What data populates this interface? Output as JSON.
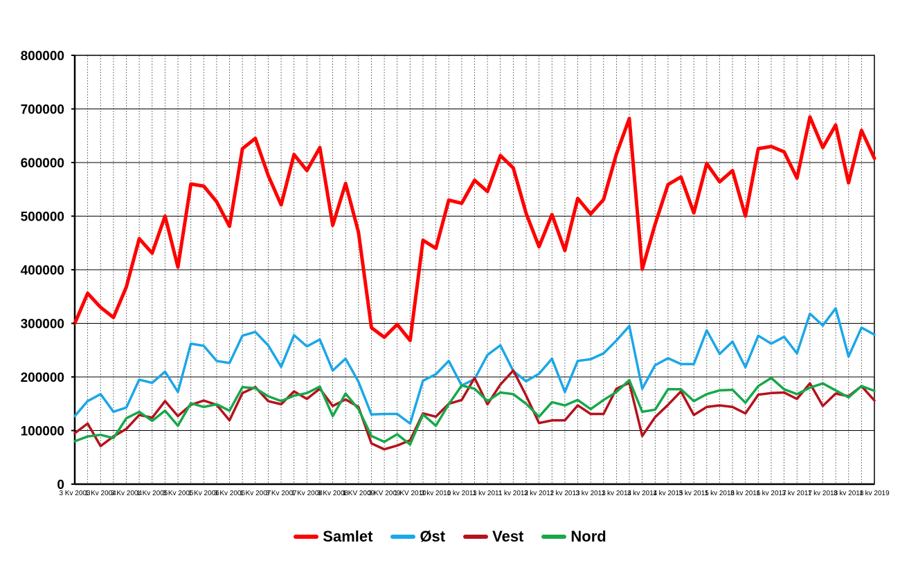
{
  "chart_data": {
    "type": "line",
    "title": "",
    "xlabel": "",
    "ylabel": "",
    "ylim": [
      0,
      800000
    ],
    "yticks": [
      "0",
      "100000",
      "200000",
      "300000",
      "400000",
      "500000",
      "600000",
      "700000",
      "800000"
    ],
    "grid": "horizontal and vertical",
    "legend_position": "bottom",
    "x_tick_labels": [
      "3 Kv 2003",
      "1 Kv 2004",
      "3 Kv 2004",
      "1 Kv 2005",
      "3 Kv 2005",
      "1 Kv 2006",
      "3 Kv 2006",
      "1 Kv 2007",
      "3 Kv 2007",
      "1 Kv 2008",
      "3 Kv 2008",
      "1 KV 2009",
      "3 KV 2009",
      "1 KV 2010",
      "3 kv 2010",
      "1 kv 2011",
      "3 kv 2011",
      "1 kv 2012",
      "3 kv 2012",
      "1 kv 2013",
      "3 kv 2013",
      "1 kv 2014",
      "3 kv 2014",
      "1 kv 2015",
      "3 kv 2015",
      "1 kv 2016",
      "3 kv 2016",
      "1 kv 2017",
      "3 kv 2017",
      "1 kv 2018",
      "3 kv 2018",
      "1 kv 2019"
    ],
    "series": [
      {
        "name": "Samlet",
        "color": "#ff0000",
        "values": [
          300000,
          356000,
          330000,
          311000,
          368000,
          458000,
          431000,
          500000,
          405000,
          560000,
          556000,
          527000,
          481000,
          626000,
          645000,
          576000,
          521000,
          615000,
          585000,
          628000,
          483000,
          561000,
          470000,
          292000,
          274000,
          298000,
          268000,
          455000,
          440000,
          530000,
          524000,
          567000,
          546000,
          613000,
          590000,
          505000,
          443000,
          503000,
          436000,
          533000,
          504000,
          531000,
          616000,
          682000,
          401000,
          485000,
          559000,
          573000,
          506000,
          598000,
          564000,
          585000,
          500000,
          626000,
          630000,
          620000,
          571000,
          685000,
          628000,
          670000,
          562000,
          660000,
          608000
        ]
      },
      {
        "name": "Øst",
        "color": "#1aa7e8",
        "values": [
          127000,
          155000,
          168000,
          135000,
          143000,
          195000,
          189000,
          210000,
          172000,
          262000,
          258000,
          230000,
          226000,
          277000,
          284000,
          259000,
          219000,
          278000,
          257000,
          270000,
          212000,
          234000,
          191000,
          130000,
          131000,
          131000,
          113000,
          193000,
          205000,
          230000,
          184000,
          196000,
          241000,
          259000,
          211000,
          192000,
          206000,
          234000,
          172000,
          230000,
          233000,
          244000,
          268000,
          295000,
          178000,
          222000,
          235000,
          224000,
          224000,
          287000,
          243000,
          266000,
          218000,
          277000,
          262000,
          275000,
          244000,
          318000,
          296000,
          328000,
          238000,
          292000,
          279000
        ]
      },
      {
        "name": "Vest",
        "color": "#b5121b",
        "values": [
          95000,
          113000,
          71000,
          89000,
          103000,
          129000,
          124000,
          155000,
          127000,
          148000,
          156000,
          148000,
          119000,
          170000,
          181000,
          155000,
          149000,
          173000,
          159000,
          178000,
          146000,
          158000,
          144000,
          76000,
          65000,
          72000,
          82000,
          132000,
          126000,
          150000,
          157000,
          198000,
          149000,
          186000,
          212000,
          165000,
          114000,
          119000,
          119000,
          147000,
          131000,
          131000,
          178000,
          189000,
          90000,
          125000,
          148000,
          173000,
          129000,
          144000,
          147000,
          144000,
          132000,
          167000,
          170000,
          171000,
          159000,
          188000,
          146000,
          169000,
          164000,
          183000,
          156000
        ]
      },
      {
        "name": "Nord",
        "color": "#16a84a",
        "values": [
          80000,
          89000,
          92000,
          86000,
          123000,
          135000,
          118000,
          137000,
          109000,
          151000,
          144000,
          149000,
          137000,
          181000,
          179000,
          164000,
          155000,
          165000,
          170000,
          182000,
          127000,
          169000,
          140000,
          90000,
          79000,
          93000,
          74000,
          130000,
          109000,
          149000,
          184000,
          178000,
          155000,
          171000,
          168000,
          150000,
          126000,
          153000,
          147000,
          157000,
          140000,
          157000,
          172000,
          194000,
          135000,
          139000,
          177000,
          177000,
          155000,
          168000,
          175000,
          176000,
          152000,
          183000,
          198000,
          177000,
          168000,
          180000,
          188000,
          175000,
          162000,
          183000,
          174000
        ]
      }
    ]
  }
}
